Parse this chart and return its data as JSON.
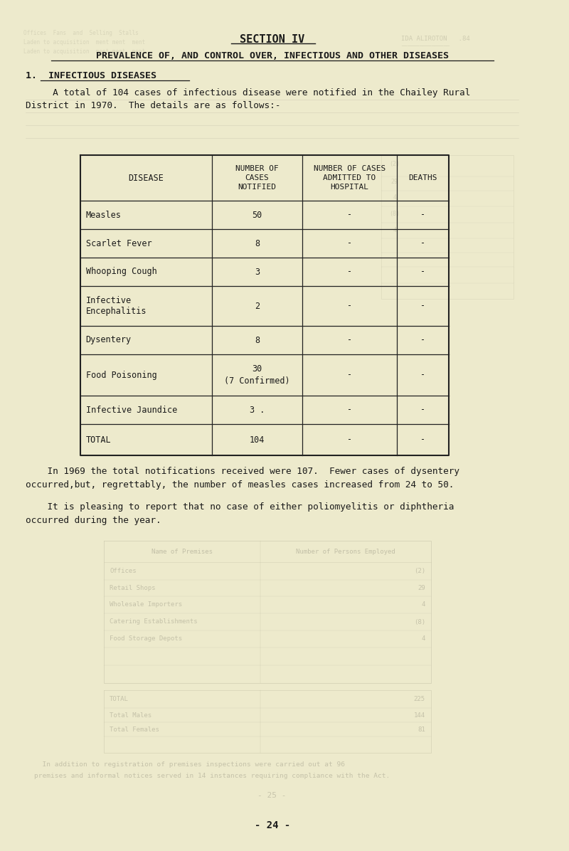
{
  "bg_color": "#edeacc",
  "section_title": "SECTION IV",
  "main_title": "PREVALENCE OF, AND CONTROL OVER, INFECTIOUS AND OTHER DISEASES",
  "section_heading": "1.  INFECTIOUS DISEASES",
  "intro_line1": "     A total of 104 cases of infectious disease were notified in the Chailey Rural",
  "intro_line2": "District in 1970.  The details are as follows:-",
  "table_headers": [
    "DISEASE",
    "NUMBER OF\nCASES\nNOTIFIED",
    "NUMBER OF CASES\nADMITTED TO\nHOSPITAL",
    "DEATHS"
  ],
  "table_rows": [
    [
      "Measles",
      "50",
      "-",
      "-"
    ],
    [
      "Scarlet Fever",
      "8",
      "-",
      "-"
    ],
    [
      "Whooping Cough",
      "3",
      "-",
      "-"
    ],
    [
      "Infective\nEncephalitis",
      "2",
      "-",
      "-"
    ],
    [
      "Dysentery",
      "8",
      "-",
      "-"
    ],
    [
      "Food Poisoning",
      "30\n(7 Confirmed)",
      "-",
      "-"
    ],
    [
      "Infective Jaundice",
      "3 .",
      "-",
      "-"
    ],
    [
      "TOTAL",
      "104",
      "-",
      "-"
    ]
  ],
  "para1_line1": "    In 1969 the total notifications received were 107.  Fewer cases of dysentery",
  "para1_line2": "occurred,but, regrettably, the number of measles cases increased from 24 to 50.",
  "para2_line1": "    It is pleasing to report that no case of either poliomyelitis or diphtheria",
  "para2_line2": "occurred during the year.",
  "page_num": "- 24 -",
  "ghost_color": "#c5c2a8",
  "ghost_color2": "#b8b59e"
}
